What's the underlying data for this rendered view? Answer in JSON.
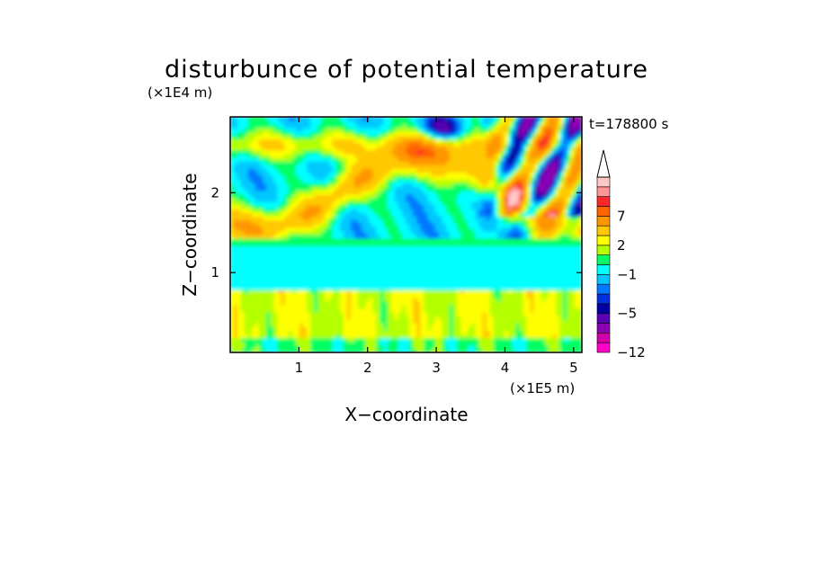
{
  "chart_data": {
    "type": "heatmap",
    "title": "disturbunce of potential temperature",
    "time_label": "t=178800 s",
    "xlabel": "X−coordinate",
    "ylabel": "Z−coordinate",
    "x_scale_label": "(×1E5 m)",
    "y_scale_label": "(×1E4 m)",
    "xlim": [
      0,
      5.12
    ],
    "ylim": [
      0,
      2.95
    ],
    "xticks": [
      1,
      2,
      3,
      4,
      5
    ],
    "xtick_labels": [
      "1",
      "2",
      "3",
      "4",
      "5"
    ],
    "yticks": [
      1,
      2
    ],
    "ytick_labels": [
      "1",
      "2"
    ],
    "colorbar": {
      "levels": [
        -12,
        -10,
        -8,
        -6,
        -5,
        -4,
        -3,
        -2,
        -1,
        0,
        1,
        2,
        3,
        5,
        7,
        8,
        9,
        10
      ],
      "labeled_levels": [
        -12,
        -5,
        -1,
        2,
        7
      ],
      "labels": [
        "−12",
        "−5",
        "−1",
        "2",
        "7"
      ],
      "colors": [
        "#ff00c8",
        "#d200a8",
        "#8c00b4",
        "#5a00b4",
        "#0000a0",
        "#0030e0",
        "#0078ff",
        "#00c8ff",
        "#00ffff",
        "#00ff64",
        "#b4ff00",
        "#ffff00",
        "#ffc800",
        "#ff9600",
        "#ff6400",
        "#ff2828",
        "#ff9696",
        "#ffc8c8"
      ],
      "extend_max_color": "#ffffff"
    },
    "field_summary": [
      {
        "z_range": [
          0.0,
          0.8
        ],
        "x_range": [
          0.0,
          5.12
        ],
        "level_range": [
          1,
          3
        ],
        "note": "yellow / green warm layer"
      },
      {
        "z_range": [
          0.8,
          1.4
        ],
        "x_range": [
          0.0,
          5.12
        ],
        "level_range": [
          -1,
          0
        ],
        "note": "cyan cool layer"
      },
      {
        "z_range": [
          1.5,
          2.9
        ],
        "x_range": [
          0.0,
          4.0
        ],
        "level_range": [
          -5,
          8
        ],
        "note": "orange / red warm waves with blue cold cells"
      },
      {
        "z_range": [
          1.6,
          2.9
        ],
        "x_range": [
          3.6,
          5.12
        ],
        "level_range": [
          -8,
          8
        ],
        "note": "alternating warm / cold wave train"
      }
    ]
  }
}
